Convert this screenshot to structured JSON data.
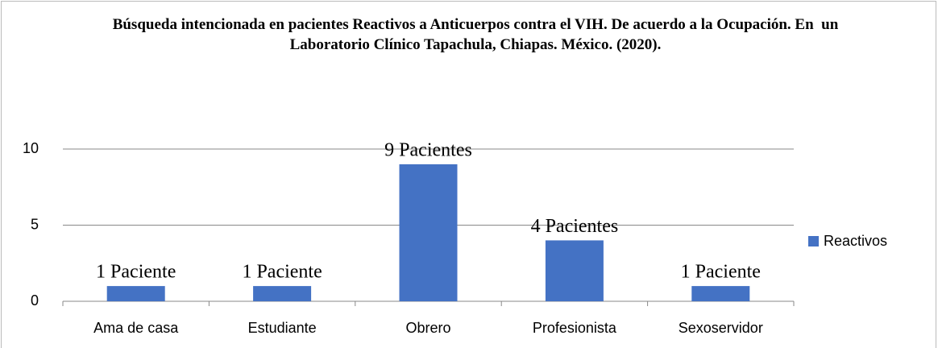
{
  "chart_data": {
    "type": "bar",
    "title": "Búsqueda intencionada en pacientes Reactivos a Anticuerpos contra el VIH. De acuerdo a la Ocupación. En  un Laboratorio Clínico Tapachula, Chiapas. México. (2020).",
    "categories": [
      "Ama de casa",
      "Estudiante",
      "Obrero",
      "Profesionista",
      "Sexoservidor"
    ],
    "series": [
      {
        "name": "Reactivos",
        "color": "#4472c4",
        "values": [
          1,
          1,
          9,
          4,
          1
        ],
        "value_labels": [
          "1 Paciente",
          "1 Paciente",
          "9 Pacientes",
          "4 Pacientes",
          "1 Paciente"
        ]
      }
    ],
    "ylim": [
      0,
      10
    ],
    "yticks": [
      0,
      5,
      10
    ],
    "grid": true,
    "legend": "right"
  }
}
